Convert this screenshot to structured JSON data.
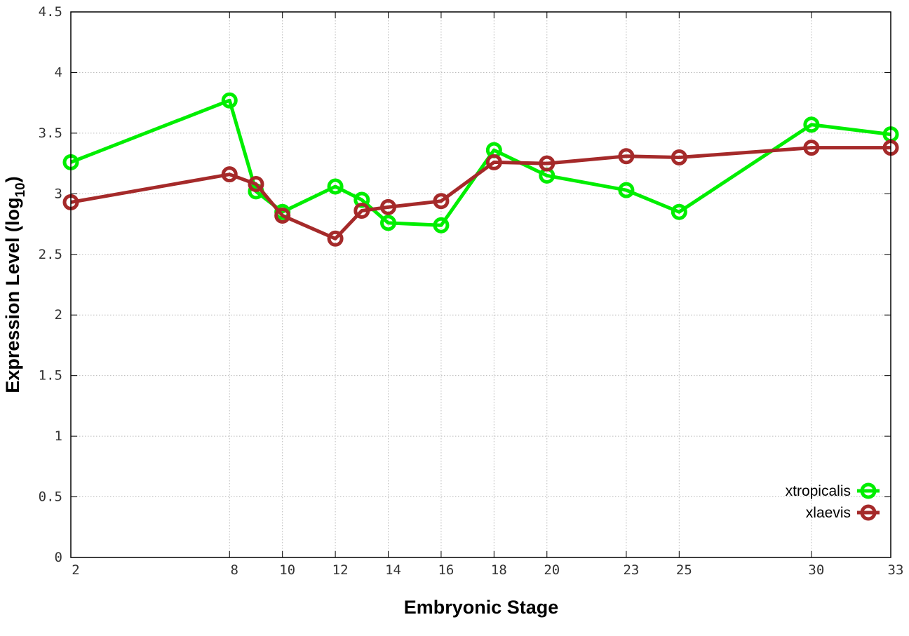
{
  "chart_data": {
    "type": "line",
    "title": "",
    "xlabel": "Embryonic Stage",
    "ylabel": "Expression Level (log",
    "ylabel_sub": "10",
    "ylabel_close": ")",
    "x": [
      2,
      8,
      9,
      10,
      12,
      13,
      14,
      16,
      18,
      20,
      23,
      25,
      30,
      33
    ],
    "xticks": [
      2,
      8,
      10,
      12,
      14,
      16,
      18,
      20,
      23,
      25,
      30,
      33
    ],
    "xtick_labels": [
      "2",
      "8",
      "10",
      "12",
      "14",
      "16",
      "18",
      "20",
      "23",
      "25",
      "30",
      "33"
    ],
    "yticks": [
      0,
      0.5,
      1,
      1.5,
      2,
      2.5,
      3,
      3.5,
      4,
      4.5
    ],
    "ytick_labels": [
      "0",
      "0.5",
      "1",
      "1.5",
      "2",
      "2.5",
      "3",
      "3.5",
      "4",
      "4.5"
    ],
    "xlim": [
      2,
      33
    ],
    "ylim": [
      0,
      4.5
    ],
    "grid": true,
    "legend_position": "bottom-right",
    "series": [
      {
        "name": "xtropicalis",
        "color": "#00ee00",
        "values": [
          3.26,
          3.77,
          3.02,
          2.85,
          3.06,
          2.95,
          2.76,
          2.74,
          3.36,
          3.15,
          3.03,
          2.85,
          3.57,
          3.49
        ]
      },
      {
        "name": "xlaevis",
        "color": "#a52a2a",
        "values": [
          2.93,
          3.16,
          3.08,
          2.82,
          2.63,
          2.86,
          2.89,
          2.94,
          3.26,
          3.25,
          3.31,
          3.3,
          3.38,
          3.38
        ]
      }
    ]
  }
}
